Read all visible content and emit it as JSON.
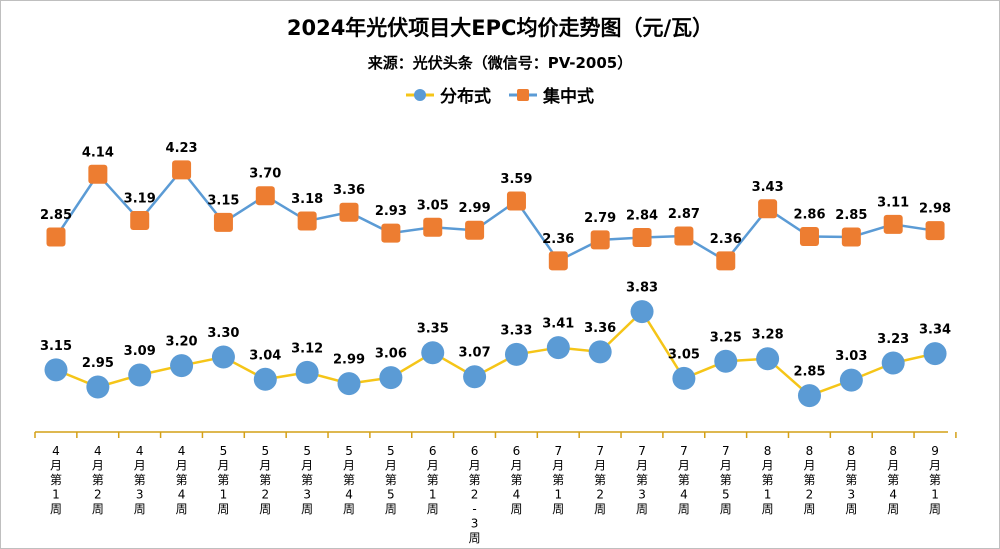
{
  "chart_data": {
    "type": "line",
    "title": "2024年光伏项目大EPC均价走势图（元/瓦）",
    "subtitle": "来源：光伏头条（微信号：PV-2005）",
    "categories": [
      "4月第1周",
      "4月第2周",
      "4月第3周",
      "4月第4周",
      "5月第1周",
      "5月第2周",
      "5月第3周",
      "5月第4周",
      "5月第5周",
      "6月第1周",
      "6月第2-3周",
      "6月第4周",
      "7月第1周",
      "7月第2周",
      "7月第3周",
      "7月第4周",
      "7月第5周",
      "8月第1周",
      "8月第2周",
      "8月第3周",
      "8月第4周",
      "9月第1周"
    ],
    "category_labels": [
      [
        "4",
        "月",
        "第",
        "1",
        "周"
      ],
      [
        "4",
        "月",
        "第",
        "2",
        "周"
      ],
      [
        "4",
        "月",
        "第",
        "3",
        "周"
      ],
      [
        "4",
        "月",
        "第",
        "4",
        "周"
      ],
      [
        "5",
        "月",
        "第",
        "1",
        "周"
      ],
      [
        "5",
        "月",
        "第",
        "2",
        "周"
      ],
      [
        "5",
        "月",
        "第",
        "3",
        "周"
      ],
      [
        "5",
        "月",
        "第",
        "4",
        "周"
      ],
      [
        "5",
        "月",
        "第",
        "5",
        "周"
      ],
      [
        "6",
        "月",
        "第",
        "1",
        "周"
      ],
      [
        "6",
        "月",
        "第",
        "2",
        "-",
        "3",
        "周"
      ],
      [
        "6",
        "月",
        "第",
        "4",
        "周"
      ],
      [
        "7",
        "月",
        "第",
        "1",
        "周"
      ],
      [
        "7",
        "月",
        "第",
        "2",
        "周"
      ],
      [
        "7",
        "月",
        "第",
        "3",
        "周"
      ],
      [
        "7",
        "月",
        "第",
        "4",
        "周"
      ],
      [
        "7",
        "月",
        "第",
        "5",
        "周"
      ],
      [
        "8",
        "月",
        "第",
        "1",
        "周"
      ],
      [
        "8",
        "月",
        "第",
        "2",
        "周"
      ],
      [
        "8",
        "月",
        "第",
        "3",
        "周"
      ],
      [
        "8",
        "月",
        "第",
        "4",
        "周"
      ],
      [
        "9",
        "月",
        "第",
        "1",
        "周"
      ]
    ],
    "series": [
      {
        "name": "分布式",
        "marker": "circle",
        "line_color": "#f5c518",
        "marker_color": "#5b9bd5",
        "values": [
          3.15,
          2.95,
          3.09,
          3.2,
          3.3,
          3.04,
          3.12,
          2.99,
          3.06,
          3.35,
          3.07,
          3.33,
          3.41,
          3.36,
          3.83,
          3.05,
          3.25,
          3.28,
          2.85,
          3.03,
          3.23,
          3.34
        ],
        "labels": [
          "3.15",
          "2.95",
          "3.09",
          "3.20",
          "3.30",
          "3.04",
          "3.12",
          "2.99",
          "3.06",
          "3.35",
          "3.07",
          "3.33",
          "3.41",
          "3.36",
          "3.83",
          "3.05",
          "3.25",
          "3.28",
          "2.85",
          "3.03",
          "3.23",
          "3.34"
        ]
      },
      {
        "name": "集中式",
        "marker": "square",
        "line_color": "#5b9bd5",
        "marker_color": "#ed7d31",
        "values": [
          2.85,
          4.14,
          3.19,
          4.23,
          3.15,
          3.7,
          3.18,
          3.36,
          2.93,
          3.05,
          2.99,
          3.59,
          2.36,
          2.79,
          2.84,
          2.87,
          2.36,
          3.43,
          2.86,
          2.85,
          3.11,
          2.98
        ],
        "labels": [
          "2.85",
          "4.14",
          "3.19",
          "4.23",
          "3.15",
          "3.70",
          "3.18",
          "3.36",
          "2.93",
          "3.05",
          "2.99",
          "3.59",
          "2.36",
          "2.79",
          "2.84",
          "2.87",
          "2.36",
          "3.43",
          "2.86",
          "2.85",
          "3.11",
          "2.98"
        ]
      }
    ],
    "legend_position": "top-center",
    "grid": false,
    "axis_color": "#d4a017"
  }
}
